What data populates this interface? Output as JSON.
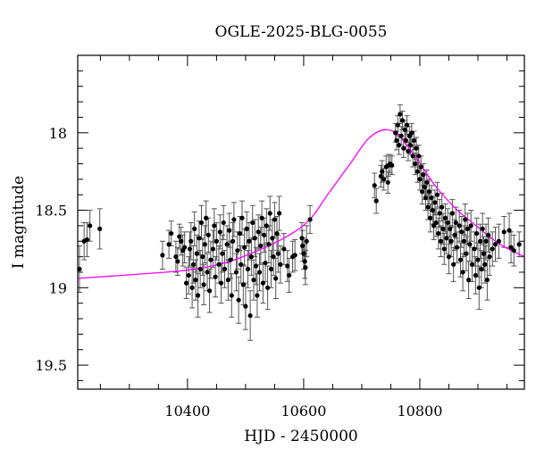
{
  "chart_data": {
    "type": "scatter",
    "title": "OGLE-2025-BLG-0055",
    "xlabel": "HJD - 2450000",
    "ylabel": "I magnitude",
    "xlim": [
      10211,
      10980
    ],
    "ylim": [
      17.5,
      19.655
    ],
    "y_inverted": true,
    "grid": false,
    "xticks_major": [
      10400,
      10600,
      10800
    ],
    "xtick_labels": [
      "10400",
      "10600",
      "10800"
    ],
    "xtick_minor_step": 50,
    "yticks_major": [
      18,
      18.5,
      19,
      19.5
    ],
    "ytick_labels": [
      "18",
      "18.5",
      "19",
      "19.5"
    ],
    "ytick_minor_step": 0.1,
    "colors": {
      "points": "#000000",
      "errorbars": "#555555",
      "model": "#ff00ff",
      "axes": "#000000"
    },
    "series": [
      {
        "kind": "points_with_errorbars",
        "points": [
          [
            10214,
            18.88,
            0.15
          ],
          [
            10222,
            18.7,
            0.12
          ],
          [
            10227,
            18.69,
            0.11
          ],
          [
            10232,
            18.6,
            0.1
          ],
          [
            10249,
            18.62,
            0.13
          ],
          [
            10357,
            18.79,
            0.09
          ],
          [
            10368,
            18.72,
            0.09
          ],
          [
            10372,
            18.65,
            0.08
          ],
          [
            10380,
            18.8,
            0.1
          ],
          [
            10383,
            18.83,
            0.09
          ],
          [
            10386,
            18.67,
            0.08
          ],
          [
            10389,
            18.7,
            0.09
          ],
          [
            10392,
            18.76,
            0.1
          ],
          [
            10395,
            18.74,
            0.1
          ],
          [
            10398,
            18.97,
            0.1
          ],
          [
            10402,
            18.92,
            0.12
          ],
          [
            10404,
            18.75,
            0.11
          ],
          [
            10406,
            18.7,
            0.12
          ],
          [
            10408,
            19.0,
            0.13
          ],
          [
            10410,
            18.85,
            0.12
          ],
          [
            10412,
            18.62,
            0.11
          ],
          [
            10414,
            18.95,
            0.13
          ],
          [
            10416,
            18.78,
            0.12
          ],
          [
            10418,
            19.05,
            0.14
          ],
          [
            10420,
            18.68,
            0.11
          ],
          [
            10422,
            18.88,
            0.12
          ],
          [
            10424,
            18.58,
            0.11
          ],
          [
            10426,
            18.8,
            0.12
          ],
          [
            10428,
            18.98,
            0.13
          ],
          [
            10430,
            18.72,
            0.12
          ],
          [
            10432,
            18.55,
            0.11
          ],
          [
            10434,
            18.9,
            0.12
          ],
          [
            10436,
            18.66,
            0.11
          ],
          [
            10438,
            19.02,
            0.14
          ],
          [
            10440,
            18.82,
            0.12
          ],
          [
            10444,
            18.75,
            0.12
          ],
          [
            10446,
            18.6,
            0.11
          ],
          [
            10448,
            18.93,
            0.13
          ],
          [
            10450,
            18.7,
            0.12
          ],
          [
            10454,
            18.85,
            0.12
          ],
          [
            10456,
            18.64,
            0.11
          ],
          [
            10458,
            18.97,
            0.13
          ],
          [
            10460,
            18.78,
            0.12
          ],
          [
            10462,
            18.58,
            0.11
          ],
          [
            10464,
            18.88,
            0.12
          ],
          [
            10468,
            18.72,
            0.12
          ],
          [
            10470,
            18.95,
            0.13
          ],
          [
            10472,
            18.63,
            0.11
          ],
          [
            10474,
            18.82,
            0.12
          ],
          [
            10476,
            19.05,
            0.14
          ],
          [
            10478,
            18.7,
            0.12
          ],
          [
            10480,
            18.56,
            0.11
          ],
          [
            10484,
            18.9,
            0.12
          ],
          [
            10486,
            18.76,
            0.12
          ],
          [
            10488,
            19.08,
            0.15
          ],
          [
            10490,
            18.65,
            0.11
          ],
          [
            10492,
            18.85,
            0.12
          ],
          [
            10494,
            18.55,
            0.11
          ],
          [
            10496,
            18.98,
            0.13
          ],
          [
            10498,
            18.74,
            0.12
          ],
          [
            10500,
            19.12,
            0.15
          ],
          [
            10502,
            18.62,
            0.11
          ],
          [
            10504,
            18.88,
            0.12
          ],
          [
            10506,
            18.7,
            0.12
          ],
          [
            10508,
            19.18,
            0.16
          ],
          [
            10510,
            18.8,
            0.12
          ],
          [
            10512,
            18.58,
            0.11
          ],
          [
            10514,
            18.95,
            0.13
          ],
          [
            10516,
            18.68,
            0.12
          ],
          [
            10518,
            18.86,
            0.12
          ],
          [
            10520,
            19.05,
            0.14
          ],
          [
            10522,
            18.64,
            0.11
          ],
          [
            10524,
            18.9,
            0.12
          ],
          [
            10526,
            18.73,
            0.12
          ],
          [
            10528,
            18.55,
            0.11
          ],
          [
            10530,
            18.97,
            0.13
          ],
          [
            10532,
            18.66,
            0.11
          ],
          [
            10534,
            18.84,
            0.12
          ],
          [
            10536,
            18.6,
            0.11
          ],
          [
            10538,
            19.0,
            0.14
          ],
          [
            10540,
            18.72,
            0.12
          ],
          [
            10542,
            18.52,
            0.11
          ],
          [
            10544,
            18.88,
            0.12
          ],
          [
            10546,
            18.68,
            0.12
          ],
          [
            10548,
            18.8,
            0.12
          ],
          [
            10550,
            18.56,
            0.11
          ],
          [
            10552,
            18.94,
            0.13
          ],
          [
            10554,
            18.65,
            0.11
          ],
          [
            10556,
            18.78,
            0.12
          ],
          [
            10558,
            18.52,
            0.11
          ],
          [
            10560,
            18.85,
            0.12
          ],
          [
            10566,
            18.75,
            0.1
          ],
          [
            10572,
            18.86,
            0.1
          ],
          [
            10575,
            18.92,
            0.11
          ],
          [
            10581,
            18.8,
            0.1
          ],
          [
            10585,
            18.79,
            0.1
          ],
          [
            10597,
            18.68,
            0.1
          ],
          [
            10598,
            18.73,
            0.1
          ],
          [
            10600,
            18.78,
            0.1
          ],
          [
            10602,
            18.83,
            0.11
          ],
          [
            10603,
            18.87,
            0.11
          ],
          [
            10605,
            18.7,
            0.1
          ],
          [
            10611,
            18.56,
            0.09
          ],
          [
            10722,
            18.34,
            0.08
          ],
          [
            10725,
            18.44,
            0.08
          ],
          [
            10733,
            18.28,
            0.07
          ],
          [
            10735,
            18.25,
            0.07
          ],
          [
            10738,
            18.3,
            0.07
          ],
          [
            10742,
            18.22,
            0.07
          ],
          [
            10745,
            18.32,
            0.07
          ],
          [
            10746,
            18.21,
            0.07
          ],
          [
            10749,
            18.2,
            0.06
          ],
          [
            10752,
            18.21,
            0.06
          ],
          [
            10758,
            18.0,
            0.06
          ],
          [
            10760,
            18.05,
            0.06
          ],
          [
            10762,
            17.95,
            0.06
          ],
          [
            10764,
            18.08,
            0.06
          ],
          [
            10766,
            17.88,
            0.06
          ],
          [
            10768,
            18.02,
            0.06
          ],
          [
            10770,
            17.92,
            0.06
          ],
          [
            10772,
            18.1,
            0.06
          ],
          [
            10774,
            17.98,
            0.06
          ],
          [
            10776,
            18.05,
            0.06
          ],
          [
            10778,
            17.95,
            0.06
          ],
          [
            10780,
            18.12,
            0.06
          ],
          [
            10782,
            18.02,
            0.06
          ],
          [
            10784,
            18.08,
            0.06
          ],
          [
            10786,
            18.0,
            0.06
          ],
          [
            10788,
            18.15,
            0.07
          ],
          [
            10790,
            18.05,
            0.06
          ],
          [
            10792,
            18.2,
            0.07
          ],
          [
            10794,
            18.1,
            0.07
          ],
          [
            10796,
            18.25,
            0.07
          ],
          [
            10798,
            18.15,
            0.07
          ],
          [
            10800,
            18.3,
            0.07
          ],
          [
            10802,
            18.22,
            0.07
          ],
          [
            10804,
            18.38,
            0.08
          ],
          [
            10806,
            18.27,
            0.07
          ],
          [
            10808,
            18.35,
            0.08
          ],
          [
            10810,
            18.42,
            0.08
          ],
          [
            10812,
            18.32,
            0.08
          ],
          [
            10814,
            18.48,
            0.08
          ],
          [
            10816,
            18.38,
            0.08
          ],
          [
            10818,
            18.55,
            0.09
          ],
          [
            10820,
            18.42,
            0.08
          ],
          [
            10822,
            18.5,
            0.09
          ],
          [
            10824,
            18.6,
            0.09
          ],
          [
            10826,
            18.45,
            0.08
          ],
          [
            10828,
            18.58,
            0.09
          ],
          [
            10830,
            18.4,
            0.08
          ],
          [
            10832,
            18.65,
            0.1
          ],
          [
            10834,
            18.52,
            0.09
          ],
          [
            10836,
            18.7,
            0.1
          ],
          [
            10838,
            18.48,
            0.09
          ],
          [
            10840,
            18.62,
            0.1
          ],
          [
            10842,
            18.75,
            0.1
          ],
          [
            10844,
            18.55,
            0.09
          ],
          [
            10846,
            18.68,
            0.1
          ],
          [
            10848,
            18.58,
            0.09
          ],
          [
            10850,
            18.8,
            0.11
          ],
          [
            10852,
            18.62,
            0.1
          ],
          [
            10854,
            18.7,
            0.1
          ],
          [
            10856,
            18.52,
            0.09
          ],
          [
            10858,
            18.85,
            0.11
          ],
          [
            10860,
            18.66,
            0.1
          ],
          [
            10862,
            18.58,
            0.1
          ],
          [
            10864,
            18.74,
            0.1
          ],
          [
            10868,
            18.6,
            0.1
          ],
          [
            10870,
            18.82,
            0.11
          ],
          [
            10872,
            18.64,
            0.1
          ],
          [
            10874,
            18.9,
            0.12
          ],
          [
            10876,
            18.7,
            0.1
          ],
          [
            10878,
            18.56,
            0.1
          ],
          [
            10880,
            18.78,
            0.11
          ],
          [
            10882,
            18.62,
            0.1
          ],
          [
            10884,
            18.95,
            0.12
          ],
          [
            10886,
            18.72,
            0.11
          ],
          [
            10888,
            18.6,
            0.1
          ],
          [
            10890,
            18.85,
            0.11
          ],
          [
            10894,
            18.75,
            0.11
          ],
          [
            10896,
            18.92,
            0.12
          ],
          [
            10898,
            18.65,
            0.1
          ],
          [
            10900,
            18.82,
            0.11
          ],
          [
            10902,
            19.0,
            0.14
          ],
          [
            10904,
            18.7,
            0.11
          ],
          [
            10906,
            18.88,
            0.12
          ],
          [
            10908,
            18.62,
            0.1
          ],
          [
            10910,
            18.78,
            0.11
          ],
          [
            10912,
            18.85,
            0.12
          ],
          [
            10914,
            18.7,
            0.11
          ],
          [
            10916,
            18.95,
            0.13
          ],
          [
            10918,
            18.66,
            0.11
          ],
          [
            10920,
            18.8,
            0.12
          ],
          [
            10925,
            18.75,
            0.11
          ],
          [
            10930,
            18.72,
            0.11
          ],
          [
            10936,
            18.7,
            0.11
          ],
          [
            10945,
            18.64,
            0.1
          ],
          [
            10954,
            18.63,
            0.11
          ],
          [
            10957,
            18.74,
            0.1
          ],
          [
            10962,
            18.76,
            0.1
          ],
          [
            10971,
            18.72,
            0.08
          ]
        ]
      },
      {
        "kind": "model_curve",
        "points": [
          [
            10211,
            18.94
          ],
          [
            10362,
            18.9
          ],
          [
            10412,
            18.88
          ],
          [
            10465,
            18.84
          ],
          [
            10515,
            18.77
          ],
          [
            10566,
            18.68
          ],
          [
            10608,
            18.57
          ],
          [
            10643,
            18.39
          ],
          [
            10680,
            18.2
          ],
          [
            10711,
            18.04
          ],
          [
            10740,
            17.98
          ],
          [
            10764,
            18.02
          ],
          [
            10795,
            18.17
          ],
          [
            10826,
            18.34
          ],
          [
            10862,
            18.49
          ],
          [
            10897,
            18.6
          ],
          [
            10938,
            18.72
          ],
          [
            10980,
            18.8
          ]
        ]
      }
    ]
  }
}
